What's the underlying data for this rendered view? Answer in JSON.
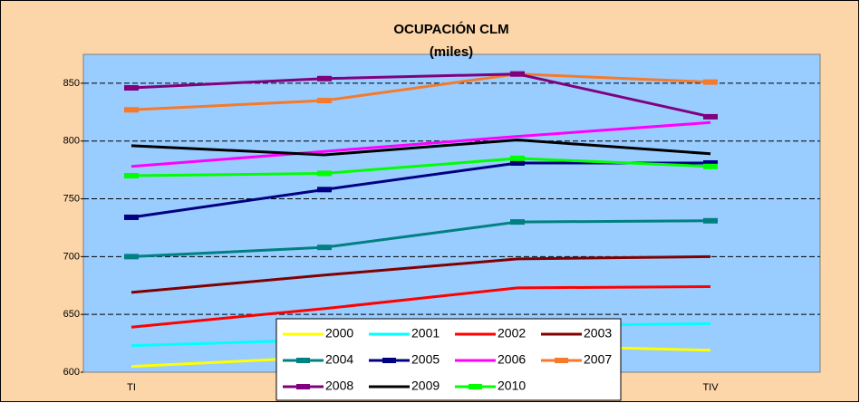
{
  "chart_data": {
    "type": "line",
    "title": "OCUPACIÓN CLM",
    "subtitle": "(miles)",
    "categories": [
      "TI",
      null,
      null,
      "TIV"
    ],
    "ylim": [
      600,
      875
    ],
    "yticks": [
      600,
      650,
      700,
      750,
      800,
      850
    ],
    "grid": true,
    "series": [
      {
        "name": "2000",
        "color": "#ffff00",
        "values": [
          605,
          613,
          623,
          619
        ]
      },
      {
        "name": "2001",
        "color": "#00ffff",
        "values": [
          623,
          628,
          640,
          642
        ]
      },
      {
        "name": "2002",
        "color": "#ff0000",
        "values": [
          639,
          655,
          673,
          674
        ]
      },
      {
        "name": "2003",
        "color": "#800000",
        "values": [
          669,
          684,
          698,
          700
        ]
      },
      {
        "name": "2004",
        "color": "#008080",
        "marker": "square",
        "values": [
          700,
          708,
          730,
          731
        ]
      },
      {
        "name": "2005",
        "color": "#000080",
        "marker": "square",
        "values": [
          734,
          758,
          781,
          781
        ]
      },
      {
        "name": "2006",
        "color": "#ff00ff",
        "values": [
          778,
          791,
          804,
          816
        ]
      },
      {
        "name": "2007",
        "color": "#f57a2a",
        "marker": "square",
        "values": [
          827,
          835,
          858,
          851
        ]
      },
      {
        "name": "2008",
        "color": "#800080",
        "marker": "square",
        "values": [
          846,
          854,
          858,
          821
        ]
      },
      {
        "name": "2009",
        "color": "#000000",
        "values": [
          796,
          788,
          801,
          789
        ]
      },
      {
        "name": "2010",
        "color": "#00ff00",
        "marker": "square",
        "values": [
          770,
          772,
          785,
          778
        ]
      }
    ]
  }
}
